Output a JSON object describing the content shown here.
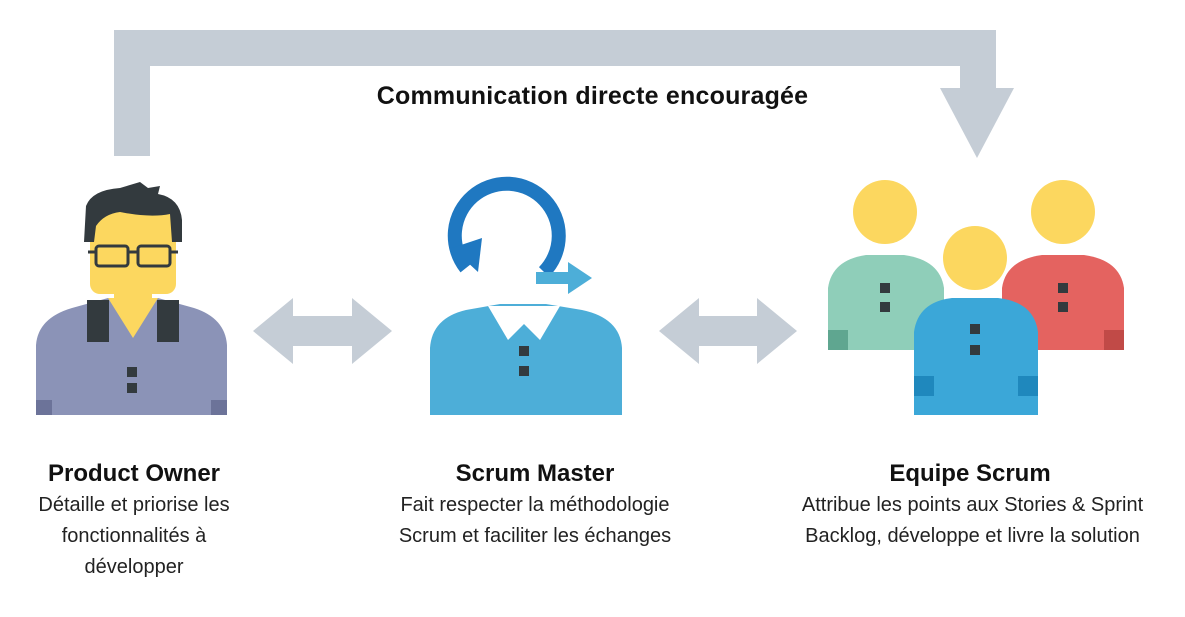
{
  "heading": "Communication directe encouragée",
  "roles": [
    {
      "title": "Product Owner",
      "description": "Détaille et priorise les fonctionnalités à développer"
    },
    {
      "title": "Scrum Master",
      "description": "Fait respecter la méthodologie Scrum et faciliter les échanges"
    },
    {
      "title": "Equipe Scrum",
      "description": "Attribue les points aux Stories & Sprint Backlog, développe et livre la solution"
    }
  ],
  "colors": {
    "arrow": "#c5cdd6",
    "skin": "#fcd75f",
    "hair": "#333a3e",
    "product_owner_shirt": "#8b93b7",
    "scrum_master_shirt": "#4daed8",
    "cycle_arrow": "#1f78c1",
    "team_green": "#8fceb9",
    "team_blue": "#3ba7d8",
    "team_red": "#e46360"
  },
  "icons": {
    "product_owner": "person-with-glasses-icon",
    "scrum_master": "person-with-cycle-arrow-icon",
    "team": "group-of-people-icon"
  }
}
